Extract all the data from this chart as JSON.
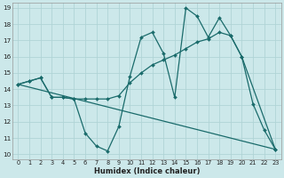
{
  "xlabel": "Humidex (Indice chaleur)",
  "xlim": [
    0,
    23
  ],
  "ylim": [
    10,
    19
  ],
  "xticks": [
    0,
    1,
    2,
    3,
    4,
    5,
    6,
    7,
    8,
    9,
    10,
    11,
    12,
    13,
    14,
    15,
    16,
    17,
    18,
    19,
    20,
    21,
    22,
    23
  ],
  "yticks": [
    10,
    11,
    12,
    13,
    14,
    15,
    16,
    17,
    18,
    19
  ],
  "bg_color": "#cce8ea",
  "grid_color": "#b0d4d6",
  "line_color": "#1a6b6b",
  "line1_x": [
    0,
    1,
    2,
    3,
    4,
    5,
    6,
    7,
    8,
    9,
    10,
    11,
    12,
    13,
    14,
    15,
    16,
    17,
    18,
    19,
    20,
    21,
    22,
    23
  ],
  "line1_y": [
    14.3,
    14.5,
    14.7,
    13.5,
    13.5,
    13.4,
    11.3,
    10.5,
    10.2,
    11.7,
    14.8,
    17.2,
    17.5,
    16.2,
    13.5,
    19.0,
    18.5,
    17.2,
    18.4,
    17.3,
    16.0,
    13.1,
    11.5,
    10.3
  ],
  "line2_x": [
    0,
    1,
    2,
    3,
    4,
    5,
    6,
    7,
    8,
    9,
    10,
    11,
    12,
    13,
    14,
    15,
    16,
    17,
    18,
    19,
    20,
    23
  ],
  "line2_y": [
    14.3,
    14.5,
    14.7,
    13.5,
    13.5,
    13.4,
    13.4,
    13.4,
    13.4,
    13.6,
    14.4,
    15.0,
    15.5,
    15.8,
    16.1,
    16.5,
    16.9,
    17.1,
    17.5,
    17.3,
    16.0,
    10.3
  ],
  "line3_x": [
    0,
    23
  ],
  "line3_y": [
    14.3,
    10.3
  ]
}
